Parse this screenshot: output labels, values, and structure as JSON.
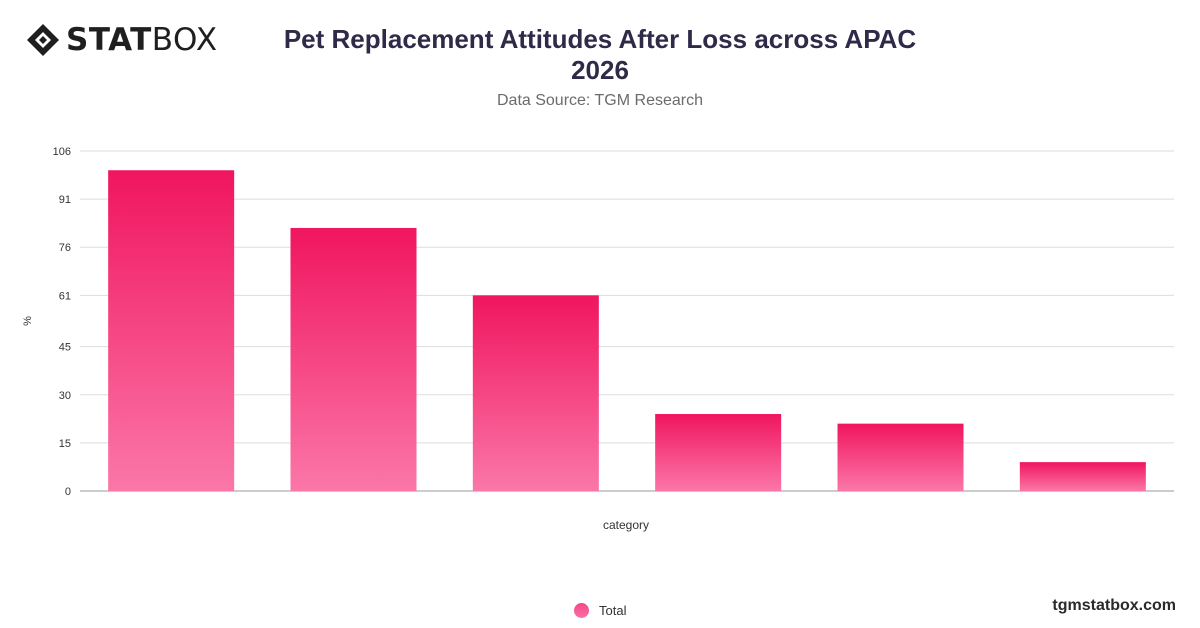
{
  "brand": {
    "bold": "STAT",
    "light": "BOX"
  },
  "header": {
    "title_line1": "Pet Replacement Attitudes After Loss across APAC",
    "title_line2": "2026",
    "subtitle": "Data Source: TGM Research"
  },
  "footer": {
    "site": "tgmstatbox.com"
  },
  "colors": {
    "bar_top": "#f0155f",
    "bar_bottom": "#fb77a8",
    "grid": "#dddddd",
    "title": "#2e2a48"
  },
  "chart_data": {
    "type": "bar",
    "title": "Pet Replacement Attitudes After Loss across APAC 2026",
    "subtitle": "Data Source: TGM Research",
    "xlabel": "category",
    "ylabel": "%",
    "categories": [
      "",
      "",
      "",
      "",
      "",
      ""
    ],
    "series": [
      {
        "name": "Total",
        "values": [
          100,
          82,
          61,
          24,
          21,
          9
        ]
      }
    ],
    "y_ticks": [
      0,
      15,
      30,
      45,
      61,
      76,
      91,
      106
    ],
    "ylim": [
      0,
      106
    ],
    "grid": true,
    "legend": "bottom-center"
  }
}
